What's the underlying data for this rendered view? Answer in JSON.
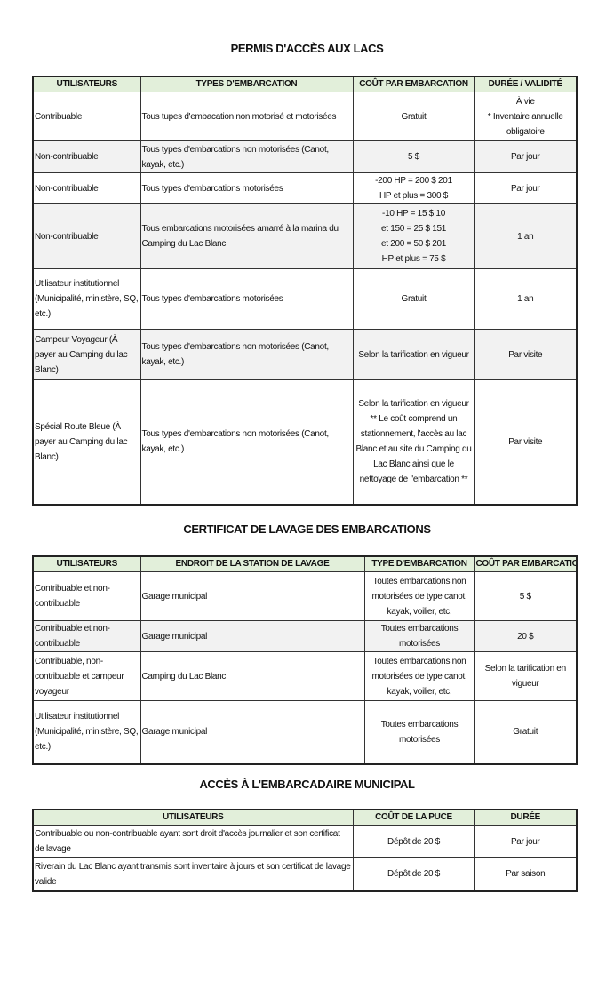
{
  "permis": {
    "title": "PERMIS D'ACCÈS AUX LACS",
    "headers": [
      "UTILISATEURS",
      "TYPES D'EMBARCATION",
      "COÛT PAR EMBARCATION",
      "DURÉE / VALIDITÉ"
    ],
    "rows": [
      [
        "Contribuable",
        "Tous tupes d'embacation non motorisé et motorisées",
        "Gratuit",
        "À vie\n* Inventaire annuelle obligatoire"
      ],
      [
        "Non-contribuable",
        "Tous types d'embarcations non motorisées (Canot, kayak, etc.)",
        "5 $",
        "Par jour"
      ],
      [
        "Non-contribuable",
        "Tous types d'embarcations motorisées",
        "-200 HP = 200 $            201\nHP et plus = 300 $",
        "Par jour"
      ],
      [
        "Non-contribuable",
        "Tous embarcations motorisées amarré à la marina du Camping du Lac Blanc",
        "-10 HP  = 15 $               10\net 150 = 25 $               151\net 200 = 50 $               201\nHP et plus = 75 $",
        "1 an"
      ],
      [
        "Utilisateur institutionnel (Municipalité, ministère, SQ, etc.)",
        "Tous types d'embarcations motorisées",
        "Gratuit",
        "1 an"
      ],
      [
        "Campeur Voyageur (À payer au Camping du lac Blanc)",
        "Tous types d'embarcations non motorisées (Canot, kayak, etc.)",
        "Selon la tarification en vigueur",
        "Par visite"
      ],
      [
        "Spécial Route Bleue      (À payer au Camping du lac Blanc)",
        "Tous types d'embarcations non motorisées (Canot, kayak, etc.)",
        "Selon la tarification en vigueur ** Le coût comprend un stationnement, l'accès au lac Blanc et au site du Camping du Lac Blanc ainsi que le nettoyage de l'embarcation **",
        "Par visite"
      ]
    ]
  },
  "lavage": {
    "title": "CERTIFICAT DE LAVAGE DES EMBARCATIONS",
    "headers": [
      "UTILISATEURS",
      "ENDROIT DE LA STATION DE LAVAGE",
      "TYPE D'EMBARCATION",
      "COÛT PAR EMBARCATION"
    ],
    "rows": [
      [
        "Contribuable et non-contribuable",
        "Garage municipal",
        "Toutes embarcations non motorisées de type canot, kayak, voilier, etc.",
        "5 $"
      ],
      [
        "Contribuable et non-contribuable",
        "Garage municipal",
        "Toutes embarcations motorisées",
        "20 $"
      ],
      [
        "Contribuable, non-contribuable et campeur voyageur",
        "Camping du Lac Blanc",
        "Toutes embarcations non motorisées de type canot, kayak, voilier, etc.",
        "Selon la tarification en vigueur"
      ],
      [
        "Utilisateur institutionnel (Municipalité, ministère, SQ, etc.)",
        "Garage municipal",
        "Toutes embarcations motorisées",
        "Gratuit"
      ]
    ]
  },
  "embarcadaire": {
    "title": "ACCÈS À L'EMBARCADAIRE MUNICIPAL",
    "headers": [
      "UTILISATEURS",
      "COÛT DE LA PUCE",
      "DURÉE"
    ],
    "rows": [
      [
        "Contribuable ou non-contribuable ayant sont droit d'accès journalier et son certificat de lavage",
        "Dépôt de 20 $",
        "Par jour"
      ],
      [
        "Riverain du Lac Blanc ayant transmis sont inventaire à jours et son certificat de lavage valide",
        "Dépôt de 20 $",
        "Par saison"
      ]
    ]
  },
  "colors": {
    "header_bg": "#e2efda",
    "alt_row_bg": "#f2f2f2"
  }
}
